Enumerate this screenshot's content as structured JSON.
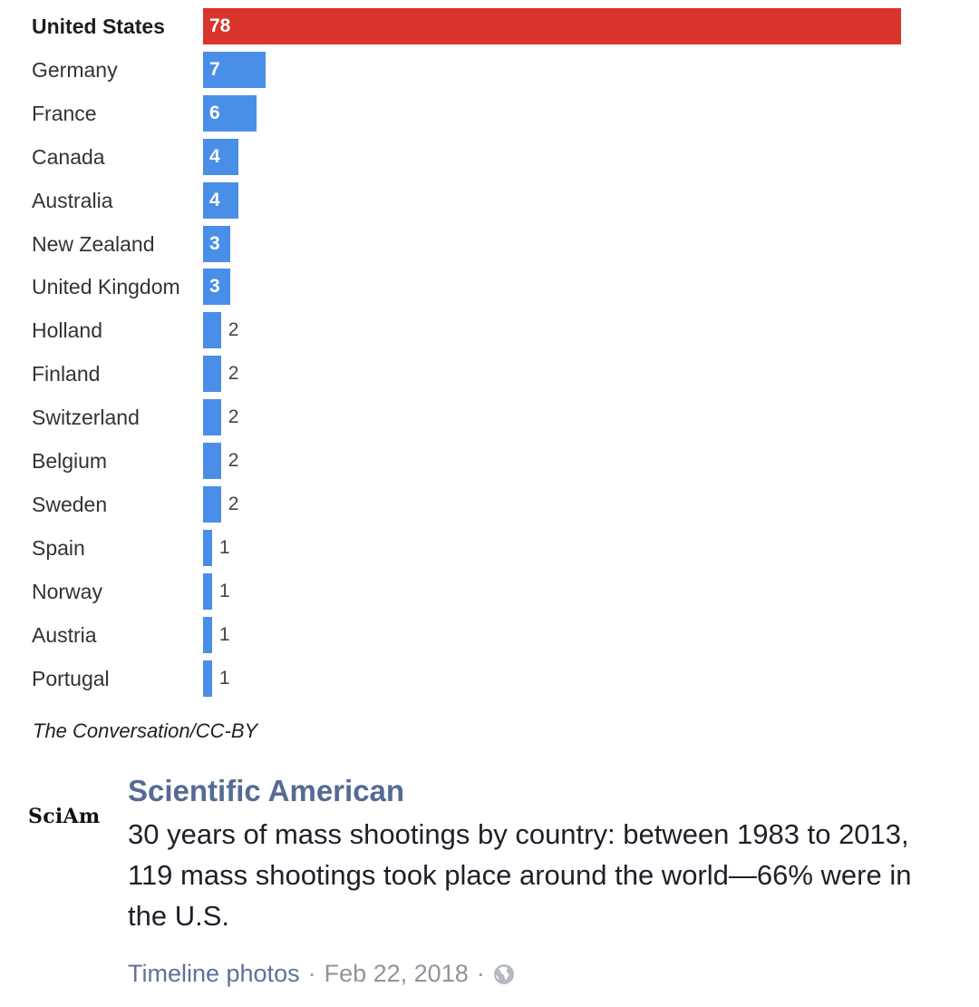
{
  "chart_data": {
    "type": "bar",
    "orientation": "horizontal",
    "categories": [
      "United States",
      "Germany",
      "France",
      "Canada",
      "Australia",
      "New Zealand",
      "United Kingdom",
      "Holland",
      "Finland",
      "Switzerland",
      "Belgium",
      "Sweden",
      "Spain",
      "Norway",
      "Austria",
      "Portugal"
    ],
    "values": [
      78,
      7,
      6,
      4,
      4,
      3,
      3,
      2,
      2,
      2,
      2,
      2,
      1,
      1,
      1,
      1
    ],
    "highlight_index": 0,
    "colors": {
      "highlight": "#d9342b",
      "default": "#4a8fe7"
    },
    "xlim": [
      0,
      78
    ],
    "credit": "The Conversation/CC-BY"
  },
  "post": {
    "logo_text": "SciAm",
    "page_name": "Scientific American",
    "text": "30 years of mass shootings by country: between 1983 to 2013, 119 mass shootings took place around the world—66% were in the U.S.",
    "source_link": "Timeline photos",
    "separator": "·",
    "date": "Feb 22, 2018",
    "privacy_icon": "globe-icon"
  }
}
